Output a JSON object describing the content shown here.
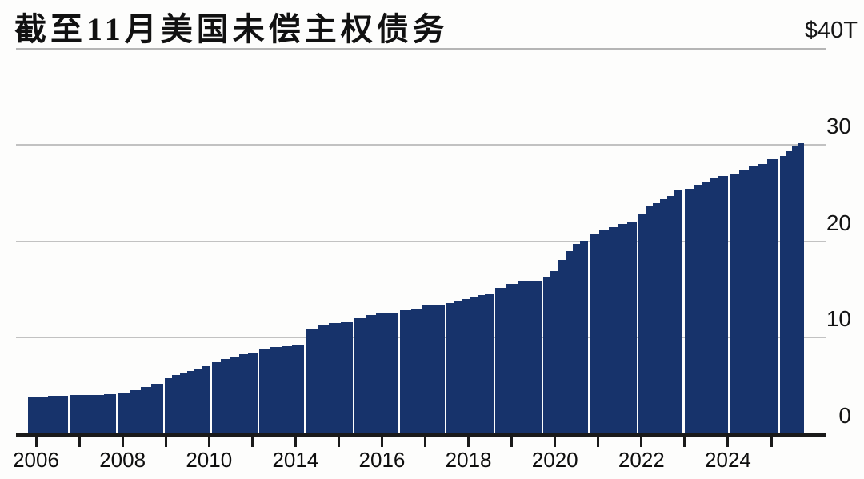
{
  "page": {
    "background": "#fdfdfc"
  },
  "chart_data": {
    "type": "bar",
    "title": "截至11月美国未偿主权债务",
    "subtitle": "",
    "legend": [],
    "grid": "horizontal-on",
    "bar_color": "#17336b",
    "axis_color": "#1a1a1a",
    "gridline_color": "#c2c2c2",
    "y_axis": {
      "top_label": "$40T",
      "ticks": [
        30,
        20,
        10,
        0
      ],
      "ylim": [
        0,
        40
      ],
      "side": "right"
    },
    "x_axis": {
      "tick_labels": [
        "2006",
        "2008",
        "2010",
        "2014",
        "2016",
        "2018",
        "2020",
        "2022",
        "2024"
      ],
      "ticks_per_label": 2,
      "total_ticks": 18
    },
    "unit": "$T",
    "groups": [
      {
        "steps": [
          3.9,
          3.9,
          3.92,
          3.95
        ]
      },
      {
        "steps": [
          4.0,
          4.02,
          4.05,
          4.12
        ]
      },
      {
        "steps": [
          4.18,
          4.5,
          4.85,
          5.2
        ]
      },
      {
        "steps": [
          5.8,
          6.1,
          6.35,
          6.55,
          6.8,
          7.0
        ]
      },
      {
        "steps": [
          7.45,
          7.75,
          8.0,
          8.25,
          8.45
        ]
      },
      {
        "steps": [
          8.8,
          9.0,
          9.1,
          9.2
        ]
      },
      {
        "steps": [
          10.85,
          11.25,
          11.5,
          11.6
        ]
      },
      {
        "steps": [
          12.0,
          12.3,
          12.5,
          12.6
        ]
      },
      {
        "steps": [
          12.8,
          12.9,
          13.3,
          13.4
        ]
      },
      {
        "steps": [
          13.55,
          13.8,
          14.0,
          14.2,
          14.4,
          14.5
        ]
      },
      {
        "steps": [
          15.15,
          15.55,
          15.8,
          15.9
        ]
      },
      {
        "steps": [
          16.3,
          16.9,
          18.1,
          18.95,
          19.7,
          20.0
        ]
      },
      {
        "steps": [
          20.8,
          21.2,
          21.5,
          21.8,
          22.0
        ]
      },
      {
        "steps": [
          22.9,
          23.6,
          23.95,
          24.35,
          24.75,
          25.3
        ]
      },
      {
        "steps": [
          25.45,
          25.85,
          26.2,
          26.5,
          26.8
        ]
      },
      {
        "steps": [
          27.0,
          27.4,
          27.75,
          28.05,
          28.5
        ]
      },
      {
        "steps": [
          28.9,
          29.4,
          29.85,
          30.2
        ]
      }
    ]
  }
}
